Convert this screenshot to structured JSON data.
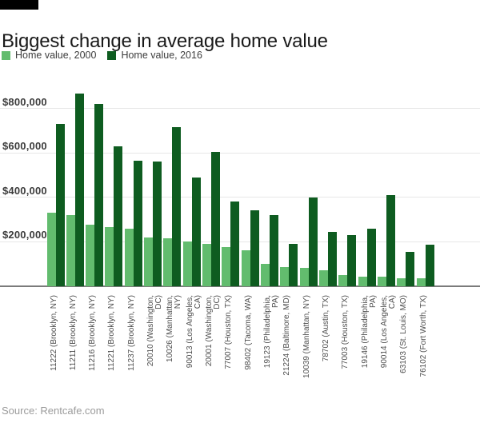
{
  "header": {
    "title": "Biggest change in average home value"
  },
  "legend": [
    {
      "label": "Home value, 2000",
      "color": "#62bc6e"
    },
    {
      "label": "Home value, 2016",
      "color": "#0e5c20"
    }
  ],
  "source": {
    "text": "Source: Rentcafe.com"
  },
  "chart_data": {
    "type": "bar",
    "title": "Biggest change in average home value",
    "legend_position": "top-left",
    "grid": "horizontal",
    "background": "#ffffff",
    "categories": [
      {
        "label": "11222 (Brooklyn, NY)",
        "lines": [
          "11222 (Brooklyn, NY)"
        ]
      },
      {
        "label": "11211 (Brooklyn, NY)",
        "lines": [
          "11211 (Brooklyn, NY)"
        ]
      },
      {
        "label": "11216 (Brooklyn, NY)",
        "lines": [
          "11216 (Brooklyn, NY)"
        ]
      },
      {
        "label": "11221 (Brooklyn, NY)",
        "lines": [
          "11221 (Brooklyn, NY)"
        ]
      },
      {
        "label": "11237 (Brooklyn, NY)",
        "lines": [
          "11237 (Brooklyn, NY)"
        ]
      },
      {
        "label": "20010 (Washington, DC)",
        "lines": [
          "20010 (Washington,",
          "DC)"
        ]
      },
      {
        "label": "10026 (Manhattan, NY)",
        "lines": [
          "10026 (Manhattan,",
          "NY)"
        ]
      },
      {
        "label": "90013 (Los Angeles, CA)",
        "lines": [
          "90013 (Los Angeles,",
          "CA)"
        ]
      },
      {
        "label": "20001 (Washington, DC)",
        "lines": [
          "20001 (Washington,",
          "DC)"
        ]
      },
      {
        "label": "77007 (Houston, TX)",
        "lines": [
          "77007 (Houston, TX)"
        ]
      },
      {
        "label": "98402 (Tacoma, WA)",
        "lines": [
          "98402 (Tacoma, WA)"
        ]
      },
      {
        "label": "19123 (Philadelphia, PA)",
        "lines": [
          "19123 (Philadelphia,",
          "PA)"
        ]
      },
      {
        "label": "21224 (Baltimore, MD)",
        "lines": [
          "21224 (Baltimore, MD)"
        ]
      },
      {
        "label": "10039 (Manhattan, NY)",
        "lines": [
          "10039 (Manhattan, NY)"
        ]
      },
      {
        "label": "78702 (Austin, TX)",
        "lines": [
          "78702 (Austin, TX)"
        ]
      },
      {
        "label": "77003 (Houston, TX)",
        "lines": [
          "77003 (Houston, TX)"
        ]
      },
      {
        "label": "19146 (Philadelphia, PA)",
        "lines": [
          "19146 (Philadelphia,",
          "PA)"
        ]
      },
      {
        "label": "90014 (Los Angeles, CA)",
        "lines": [
          "90014 (Los Angeles,",
          "CA)"
        ]
      },
      {
        "label": "63103 (St. Louis, MO)",
        "lines": [
          "63103 (St. Louis, MO)"
        ]
      },
      {
        "label": "76102 (Fort Worth, TX)",
        "lines": [
          "76102 (Fort Worth, TX)"
        ]
      }
    ],
    "series": [
      {
        "name": "Home value, 2000",
        "color": "#62bc6e",
        "values": [
          330000,
          320000,
          275000,
          265000,
          260000,
          220000,
          215000,
          200000,
          190000,
          175000,
          160000,
          100000,
          85000,
          80000,
          70000,
          50000,
          40000,
          40000,
          35000,
          35000
        ]
      },
      {
        "name": "Home value, 2016",
        "color": "#0e5c20",
        "values": [
          730000,
          870000,
          820000,
          630000,
          565000,
          560000,
          715000,
          490000,
          605000,
          380000,
          340000,
          320000,
          190000,
          400000,
          245000,
          230000,
          260000,
          410000,
          155000,
          185000
        ]
      }
    ],
    "y_axis": {
      "min": 0,
      "max": 900000,
      "tick_step": 200000,
      "ticks": [
        {
          "value": 200000,
          "label": "$200,000"
        },
        {
          "value": 400000,
          "label": "$400,000"
        },
        {
          "value": 600000,
          "label": "$600,000"
        },
        {
          "value": 800000,
          "label": "$800,000"
        }
      ]
    },
    "source": "Source: Rentcafe.com"
  }
}
